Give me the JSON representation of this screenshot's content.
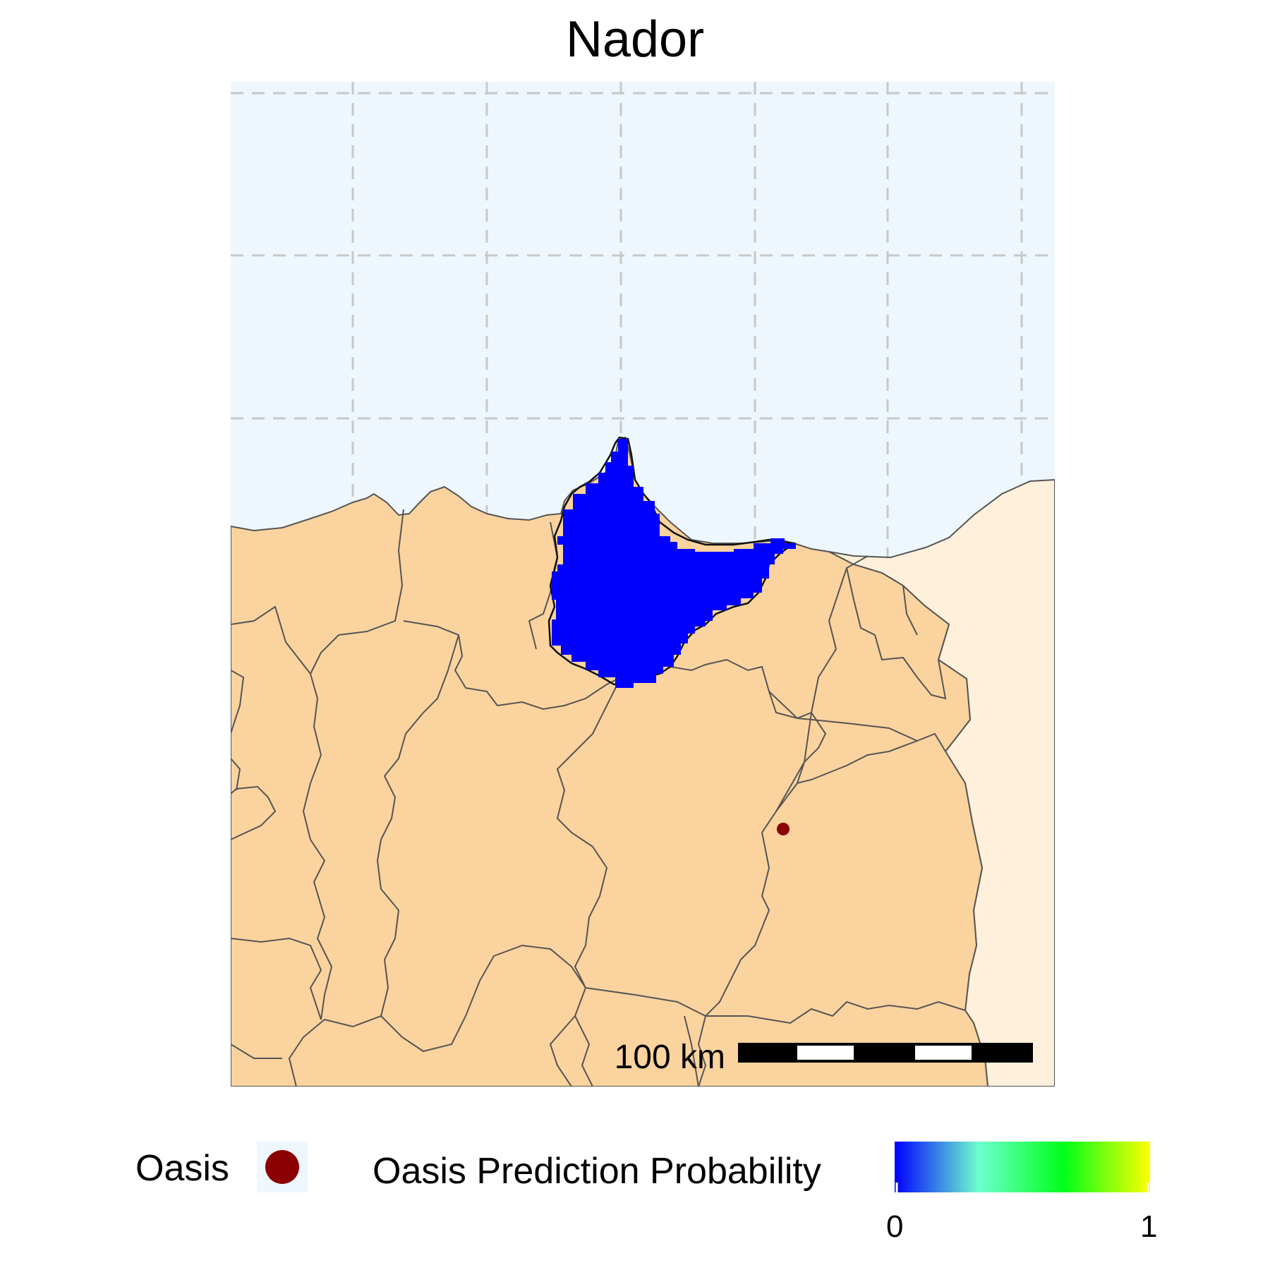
{
  "map": {
    "title": "Nador",
    "scale_bar_label": "100 km"
  },
  "legend": {
    "oasis_label": "Oasis",
    "probability_label": "Oasis Prediction Probability",
    "gradient_colors": [
      "#0000ff",
      "#6fffce",
      "#00ff1a",
      "#ffff00"
    ],
    "min_label": "0",
    "max_label": "1"
  },
  "colors": {
    "sea": "#eef7fe",
    "land_morocco": "#fbd39e",
    "land_algeria": "#fef0db",
    "prediction_area": "#0000ff",
    "oasis_point": "#8b0000",
    "grid": "#c8c8c8",
    "border": "#555555"
  }
}
